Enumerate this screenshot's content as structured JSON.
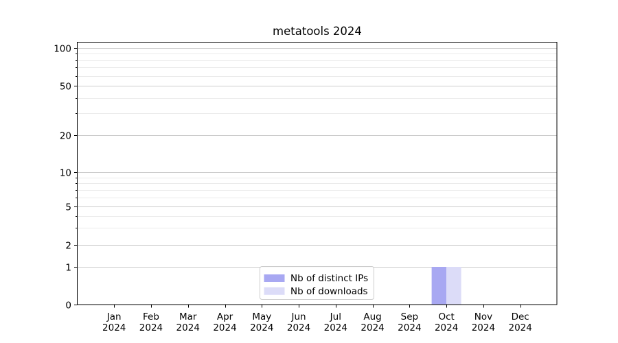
{
  "chart_data": {
    "type": "bar",
    "title": "metatools 2024",
    "x_tick_months": [
      "Jan",
      "Feb",
      "Mar",
      "Apr",
      "May",
      "Jun",
      "Jul",
      "Aug",
      "Sep",
      "Oct",
      "Nov",
      "Dec"
    ],
    "x_tick_year": "2024",
    "series": [
      {
        "name": "Nb of distinct IPs",
        "color": "#a8a8f2",
        "values": [
          0,
          0,
          0,
          0,
          0,
          0,
          0,
          0,
          0,
          1,
          0,
          0
        ]
      },
      {
        "name": "Nb of downloads",
        "color": "#dcdcf8",
        "values": [
          0,
          0,
          0,
          0,
          0,
          0,
          0,
          0,
          0,
          1,
          0,
          0
        ]
      }
    ],
    "y_axis": {
      "scale": "symlog",
      "major_ticks": [
        0,
        1,
        2,
        5,
        10,
        20,
        50,
        100
      ],
      "minor_ticks": [
        3,
        4,
        6,
        7,
        8,
        9,
        30,
        40,
        60,
        70,
        80,
        90
      ],
      "ylim": [
        0,
        110
      ]
    },
    "legend": {
      "position": "lower-center",
      "entries": [
        "Nb of distinct IPs",
        "Nb of downloads"
      ]
    },
    "grid": {
      "horizontal": true,
      "vertical": false
    },
    "colors": {
      "background": "#ffffff",
      "axis": "#000000",
      "text": "#000000",
      "major_grid": "#cbcbcb",
      "minor_grid": "#ebebeb",
      "legend_border": "#cccccc",
      "legend_fill": "#ffffff"
    }
  }
}
